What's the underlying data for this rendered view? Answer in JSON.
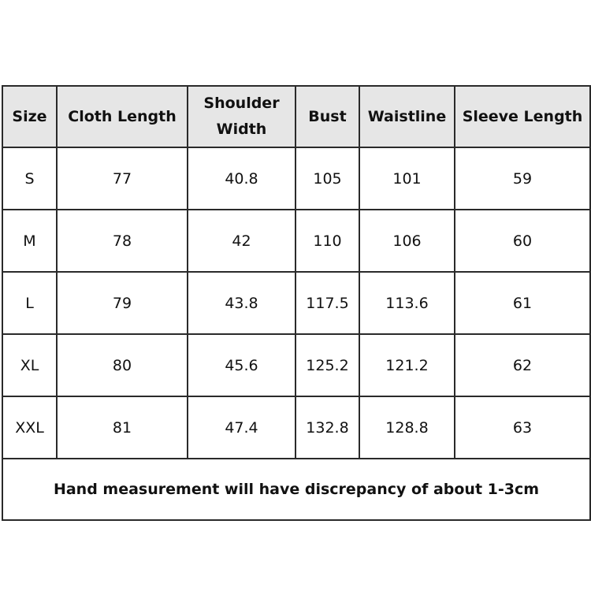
{
  "table": {
    "headers": [
      "Size",
      "Cloth Length",
      "Shoulder Width",
      "Bust",
      "Waistline",
      "Sleeve Length"
    ],
    "rows": [
      [
        "S",
        "77",
        "40.8",
        "105",
        "101",
        "59"
      ],
      [
        "M",
        "78",
        "42",
        "110",
        "106",
        "60"
      ],
      [
        "L",
        "79",
        "43.8",
        "117.5",
        "113.6",
        "61"
      ],
      [
        "XL",
        "80",
        "45.6",
        "125.2",
        "121.2",
        "62"
      ],
      [
        "XXL",
        "81",
        "47.4",
        "132.8",
        "128.8",
        "63"
      ]
    ],
    "footer_note": "Hand measurement will have discrepancy of about 1-3cm",
    "header_background": "#e6e6e6"
  }
}
